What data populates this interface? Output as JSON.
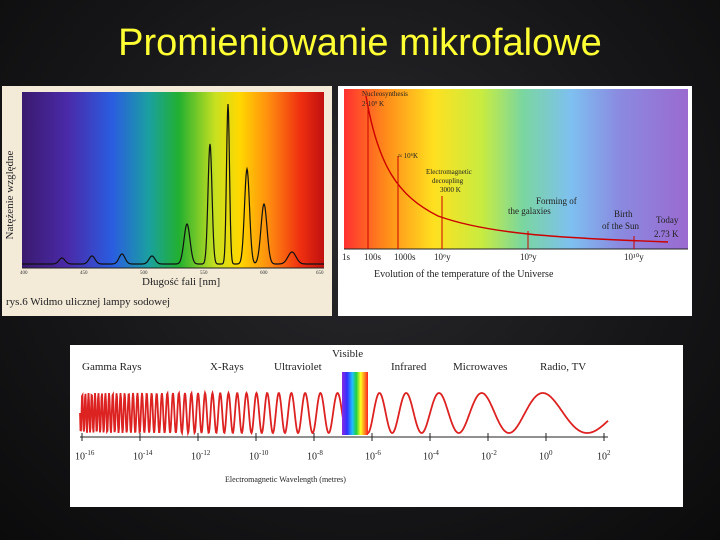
{
  "slide": {
    "title": "Promieniowanie mikrofalowe"
  },
  "sodium_panel": {
    "ylabel": "Natężenie względne",
    "xlabel": "Długość fali [nm]",
    "caption": "rys.6 Widmo ulicznej lampy sodowej",
    "ticks": [
      "400",
      "450",
      "500",
      "550",
      "600",
      "650"
    ]
  },
  "universe_panel": {
    "caption": "Evolution of the temperature of the Universe",
    "labels": {
      "nucleosynthesis": "Nucleosynthesis",
      "nucleo_temp": "2·10⁹ K",
      "t6": "≈ 10⁶K",
      "em_line1": "Electromagnetic",
      "em_line2": "decoupling",
      "em_temp": "3000 K",
      "forming1": "Forming of",
      "forming2": "the galaxies",
      "birth1": "Birth",
      "birth2": "of the Sun",
      "today1": "Today",
      "today2": "2.73 K"
    },
    "time_ticks": [
      "1s",
      "100s",
      "1000s",
      "10⁶y",
      "10⁹y",
      "10¹⁰y"
    ]
  },
  "em_panel": {
    "bands": [
      "Gamma Rays",
      "X-Rays",
      "Ultraviolet",
      "Infrared",
      "Microwaves",
      "Radio, TV"
    ],
    "visible": "Visible",
    "axis_label": "Electromagnetic Wavelength (metres)",
    "exponents": [
      "-16",
      "-14",
      "-12",
      "-10",
      "-8",
      "-6",
      "-4",
      "-2",
      "0",
      "2"
    ],
    "tick_base": "10",
    "wave_color": "#dd2222"
  }
}
